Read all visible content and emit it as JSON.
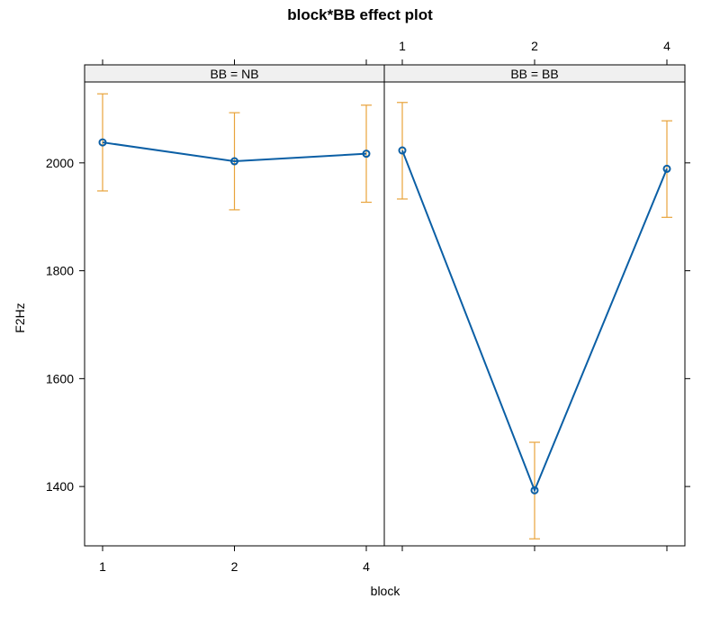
{
  "chart_data": {
    "type": "line",
    "title": "block*BB effect plot",
    "xlabel": "block",
    "ylabel": "F2Hz",
    "categories": [
      "1",
      "2",
      "4"
    ],
    "ylim": [
      1290,
      2150
    ],
    "yticks": [
      1400,
      1600,
      1800,
      2000
    ],
    "panels": [
      {
        "strip": "BB = NB",
        "fit": [
          2038,
          2003,
          2017
        ],
        "lower": [
          1948,
          1913,
          1927
        ],
        "upper": [
          2128,
          2093,
          2107
        ]
      },
      {
        "strip": "BB = BB",
        "fit": [
          2023,
          1393,
          1989
        ],
        "lower": [
          1933,
          1303,
          1899
        ],
        "upper": [
          2112,
          1482,
          2078
        ]
      }
    ],
    "colors": {
      "line": "#0b5fa5",
      "ci": "#e8a33b",
      "strip_bg": "#f0f0f0"
    }
  }
}
